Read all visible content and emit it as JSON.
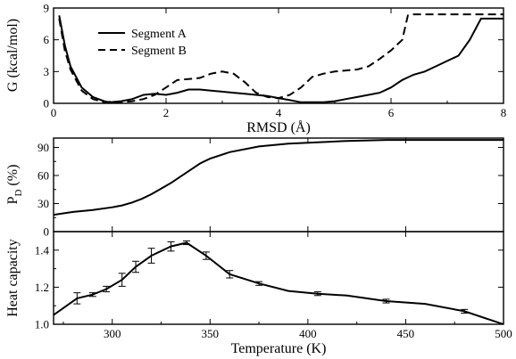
{
  "chart_data": [
    {
      "type": "line",
      "xlabel": "RMSD (Å)",
      "ylabel": "G (kcal/mol)",
      "xlim": [
        0,
        8
      ],
      "ylim": [
        0,
        9
      ],
      "xticks": [
        0,
        2,
        4,
        6,
        8
      ],
      "yticks": [
        0,
        3,
        6,
        9
      ],
      "grid": false,
      "legend_position": "top-left",
      "series": [
        {
          "name": "Segment A",
          "style": "solid",
          "x": [
            0.1,
            0.2,
            0.3,
            0.5,
            0.7,
            0.9,
            1.0,
            1.2,
            1.4,
            1.6,
            1.8,
            2.0,
            2.2,
            2.4,
            2.6,
            2.8,
            3.0,
            3.2,
            3.4,
            3.6,
            3.8,
            4.0,
            4.2,
            4.4,
            4.6,
            4.8,
            5.0,
            5.2,
            5.4,
            5.6,
            5.8,
            6.0,
            6.2,
            6.4,
            6.6,
            6.8,
            7.0,
            7.2,
            7.4,
            7.6,
            8.0
          ],
          "y": [
            8.3,
            5.5,
            3.5,
            1.5,
            0.6,
            0.2,
            0.1,
            0.2,
            0.4,
            0.8,
            0.9,
            0.8,
            1.0,
            1.3,
            1.3,
            1.2,
            1.1,
            1.0,
            0.9,
            0.8,
            0.7,
            0.5,
            0.3,
            0.1,
            0.1,
            0.1,
            0.2,
            0.4,
            0.6,
            0.8,
            1.0,
            1.5,
            2.2,
            2.7,
            3.0,
            3.5,
            4.0,
            4.5,
            6.0,
            8.0,
            8.0
          ]
        },
        {
          "name": "Segment B",
          "style": "dashed",
          "x": [
            0.1,
            0.2,
            0.3,
            0.5,
            0.7,
            0.9,
            1.0,
            1.2,
            1.4,
            1.6,
            1.8,
            2.0,
            2.2,
            2.4,
            2.6,
            2.8,
            3.0,
            3.2,
            3.4,
            3.6,
            3.8,
            4.0,
            4.2,
            4.4,
            4.6,
            4.8,
            5.0,
            5.2,
            5.4,
            5.6,
            5.8,
            6.0,
            6.2,
            6.3,
            6.4,
            6.6,
            6.8,
            7.0,
            7.2,
            7.4,
            7.6,
            8.0
          ],
          "y": [
            8.0,
            5.0,
            3.2,
            1.2,
            0.4,
            0.1,
            0.1,
            0.1,
            0.2,
            0.4,
            0.8,
            1.5,
            2.2,
            2.3,
            2.4,
            2.8,
            3.0,
            2.8,
            2.0,
            1.0,
            0.6,
            0.5,
            0.8,
            1.5,
            2.5,
            2.8,
            3.0,
            3.1,
            3.2,
            3.5,
            4.2,
            5.0,
            6.0,
            8.3,
            8.4,
            8.4,
            8.4,
            8.4,
            8.4,
            8.4,
            8.4,
            8.4
          ]
        }
      ]
    },
    {
      "type": "line",
      "xlabel": "",
      "ylabel": "P_D (%)",
      "ylabel_main": "P",
      "ylabel_sub": "D",
      "ylabel_suffix": " (%)",
      "xlim": [
        270,
        500
      ],
      "ylim": [
        0,
        100
      ],
      "yticks": [
        0,
        30,
        60,
        90
      ],
      "grid": false,
      "series": [
        {
          "x": [
            270,
            280,
            290,
            300,
            305,
            310,
            315,
            320,
            325,
            330,
            335,
            340,
            345,
            350,
            360,
            375,
            390,
            400,
            410,
            420,
            440,
            460,
            480,
            500
          ],
          "y": [
            18,
            21,
            23,
            26,
            28,
            31,
            35,
            40,
            46,
            52,
            59,
            66,
            73,
            78,
            85,
            91,
            94,
            95,
            96,
            97,
            98,
            98,
            98,
            98
          ]
        }
      ]
    },
    {
      "type": "line",
      "xlabel": "Temperature (K)",
      "ylabel": "Heat capacity",
      "xlim": [
        270,
        500
      ],
      "ylim": [
        1.0,
        1.5
      ],
      "xticks": [
        300,
        350,
        400,
        450,
        500
      ],
      "yticks": [
        1.0,
        1.2,
        1.4
      ],
      "ytick_labels": [
        "1.0",
        "1.2",
        "1.4"
      ],
      "grid": false,
      "series": [
        {
          "x": [
            270,
            282,
            290,
            297,
            305,
            312,
            320,
            330,
            338,
            348,
            360,
            375,
            390,
            405,
            420,
            440,
            460,
            480,
            500
          ],
          "y": [
            1.05,
            1.14,
            1.16,
            1.19,
            1.24,
            1.31,
            1.37,
            1.42,
            1.44,
            1.37,
            1.27,
            1.22,
            1.18,
            1.165,
            1.155,
            1.125,
            1.11,
            1.07,
            1.0
          ],
          "error": [
            0.0,
            0.03,
            0.01,
            0.015,
            0.035,
            0.03,
            0.04,
            0.025,
            0.01,
            0.02,
            0.02,
            0.01,
            0.0,
            0.01,
            0.0,
            0.01,
            0.0,
            0.01,
            0.0
          ]
        }
      ]
    }
  ]
}
